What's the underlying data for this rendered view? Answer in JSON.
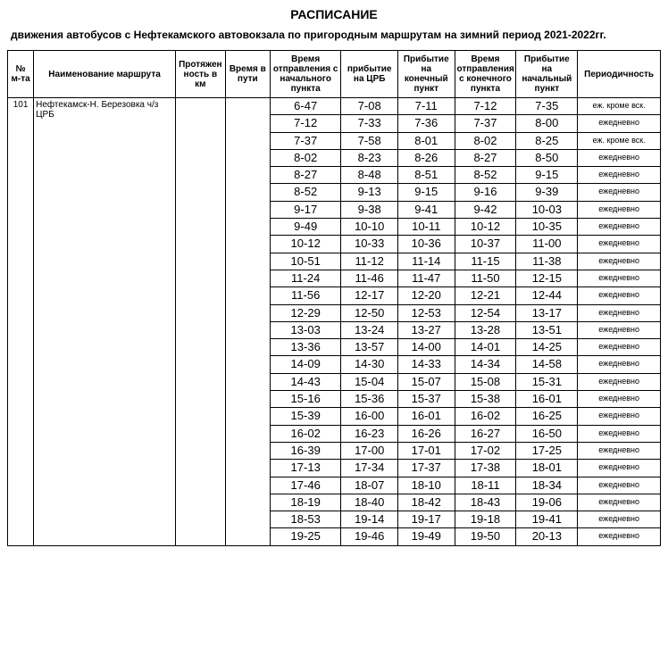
{
  "title": "РАСПИСАНИЕ",
  "subtitle": "движения автобусов с Нефтекамского автовокзала по пригородным  маршрутам на зимний период 2021-2022гг.",
  "headers": {
    "num": "№ м-та",
    "name": "Наименование маршрута",
    "dist": "Протяжен ность в км",
    "dur": "Время в пути",
    "dep": "Время отправления с начального пункта",
    "crb": "прибытие на ЦРБ",
    "arr": "Прибытие на конечный пункт",
    "dep2": "Время отправления с конечного пункта",
    "arr2": "Прибытие на начальный пункт",
    "freq": "Периодичность"
  },
  "route": {
    "num": "101",
    "name": "Нефтекамск-Н. Березовка ч/з ЦРБ"
  },
  "freq_daily": "ежедневно",
  "freq_except_sun": "еж. кроме вск.",
  "rows": [
    {
      "dep": "6-47",
      "crb": "7-08",
      "arr": "7-11",
      "dep2": "7-12",
      "arr2": "7-35",
      "freq": "еж. кроме вск."
    },
    {
      "dep": "7-12",
      "crb": "7-33",
      "arr": "7-36",
      "dep2": "7-37",
      "arr2": "8-00",
      "freq": "ежедневно"
    },
    {
      "dep": "7-37",
      "crb": "7-58",
      "arr": "8-01",
      "dep2": "8-02",
      "arr2": "8-25",
      "freq": "еж. кроме вск."
    },
    {
      "dep": "8-02",
      "crb": "8-23",
      "arr": "8-26",
      "dep2": "8-27",
      "arr2": "8-50",
      "freq": "ежедневно"
    },
    {
      "dep": "8-27",
      "crb": "8-48",
      "arr": "8-51",
      "dep2": "8-52",
      "arr2": "9-15",
      "freq": "ежедневно"
    },
    {
      "dep": "8-52",
      "crb": "9-13",
      "arr": "9-15",
      "dep2": "9-16",
      "arr2": "9-39",
      "freq": "ежедневно"
    },
    {
      "dep": "9-17",
      "crb": "9-38",
      "arr": "9-41",
      "dep2": "9-42",
      "arr2": "10-03",
      "freq": "ежедневно"
    },
    {
      "dep": "9-49",
      "crb": "10-10",
      "arr": "10-11",
      "dep2": "10-12",
      "arr2": "10-35",
      "freq": "ежедневно"
    },
    {
      "dep": "10-12",
      "crb": "10-33",
      "arr": "10-36",
      "dep2": "10-37",
      "arr2": "11-00",
      "freq": "ежедневно"
    },
    {
      "dep": "10-51",
      "crb": "11-12",
      "arr": "11-14",
      "dep2": "11-15",
      "arr2": "11-38",
      "freq": "ежедневно"
    },
    {
      "dep": "11-24",
      "crb": "11-46",
      "arr": "11-47",
      "dep2": "11-50",
      "arr2": "12-15",
      "freq": "ежедневно"
    },
    {
      "dep": "11-56",
      "crb": "12-17",
      "arr": "12-20",
      "dep2": "12-21",
      "arr2": "12-44",
      "freq": "ежедневно"
    },
    {
      "dep": "12-29",
      "crb": "12-50",
      "arr": "12-53",
      "dep2": "12-54",
      "arr2": "13-17",
      "freq": "ежедневно"
    },
    {
      "dep": "13-03",
      "crb": "13-24",
      "arr": "13-27",
      "dep2": "13-28",
      "arr2": "13-51",
      "freq": "ежедневно"
    },
    {
      "dep": "13-36",
      "crb": "13-57",
      "arr": "14-00",
      "dep2": "14-01",
      "arr2": "14-25",
      "freq": "ежедневно"
    },
    {
      "dep": "14-09",
      "crb": "14-30",
      "arr": "14-33",
      "dep2": "14-34",
      "arr2": "14-58",
      "freq": "ежедневно"
    },
    {
      "dep": "14-43",
      "crb": "15-04",
      "arr": "15-07",
      "dep2": "15-08",
      "arr2": "15-31",
      "freq": "ежедневно"
    },
    {
      "dep": "15-16",
      "crb": "15-36",
      "arr": "15-37",
      "dep2": "15-38",
      "arr2": "16-01",
      "freq": "ежедневно"
    },
    {
      "dep": "15-39",
      "crb": "16-00",
      "arr": "16-01",
      "dep2": "16-02",
      "arr2": "16-25",
      "freq": "ежедневно"
    },
    {
      "dep": "16-02",
      "crb": "16-23",
      "arr": "16-26",
      "dep2": "16-27",
      "arr2": "16-50",
      "freq": "ежедневно"
    },
    {
      "dep": "16-39",
      "crb": "17-00",
      "arr": "17-01",
      "dep2": "17-02",
      "arr2": "17-25",
      "freq": "ежедневно"
    },
    {
      "dep": "17-13",
      "crb": "17-34",
      "arr": "17-37",
      "dep2": "17-38",
      "arr2": "18-01",
      "freq": "ежедневно"
    },
    {
      "dep": "17-46",
      "crb": "18-07",
      "arr": "18-10",
      "dep2": "18-11",
      "arr2": "18-34",
      "freq": "ежедневно"
    },
    {
      "dep": "18-19",
      "crb": "18-40",
      "arr": "18-42",
      "dep2": "18-43",
      "arr2": "19-06",
      "freq": "ежедневно"
    },
    {
      "dep": "18-53",
      "crb": "19-14",
      "arr": "19-17",
      "dep2": "19-18",
      "arr2": "19-41",
      "freq": "ежедневно"
    },
    {
      "dep": "19-25",
      "crb": "19-46",
      "arr": "19-49",
      "dep2": "19-50",
      "arr2": "20-13",
      "freq": "ежедневно"
    }
  ]
}
